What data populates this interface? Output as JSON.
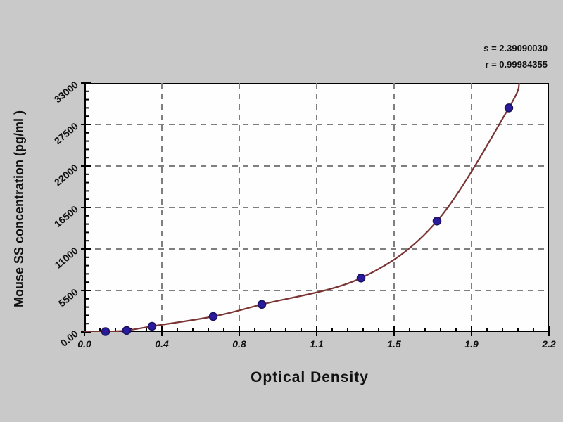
{
  "stats": {
    "s_label": "s = 2.39090030",
    "r_label": "r = 0.99984355"
  },
  "chart_data": {
    "type": "scatter",
    "title": "",
    "xlabel": "Optical Density",
    "ylabel": "Mouse SS concentration (pg/ml )",
    "xlim": [
      0,
      2.2
    ],
    "ylim": [
      0,
      33000
    ],
    "x_tick_labels": [
      "0.0",
      "0.4",
      "0.8",
      "1.1",
      "1.5",
      "1.9",
      "2.2"
    ],
    "y_tick_labels": [
      "0.00",
      "5500",
      "11000",
      "16500",
      "22000",
      "27500",
      "33000"
    ],
    "grid": true,
    "legend": "none",
    "points": [
      {
        "od": 0.1,
        "conc": 50
      },
      {
        "od": 0.2,
        "conc": 200
      },
      {
        "od": 0.32,
        "conc": 750
      },
      {
        "od": 0.61,
        "conc": 2050
      },
      {
        "od": 0.84,
        "conc": 3650
      },
      {
        "od": 1.31,
        "conc": 7150
      },
      {
        "od": 1.67,
        "conc": 14700
      },
      {
        "od": 2.01,
        "conc": 29700
      }
    ],
    "curve": {
      "type": "fitted-exponential",
      "start": {
        "od": 0.0,
        "conc": 0
      },
      "exit_top": {
        "od": 2.06,
        "conc": 33000
      }
    },
    "colors": {
      "background": "#c9c9c9",
      "plot_background": "#fefefe",
      "border": "#000000",
      "grid": "#7f7f7f",
      "curve": "#7b3434",
      "marker": "#2a1a9c",
      "marker_edge": "#17115e",
      "text": "#111111"
    }
  }
}
